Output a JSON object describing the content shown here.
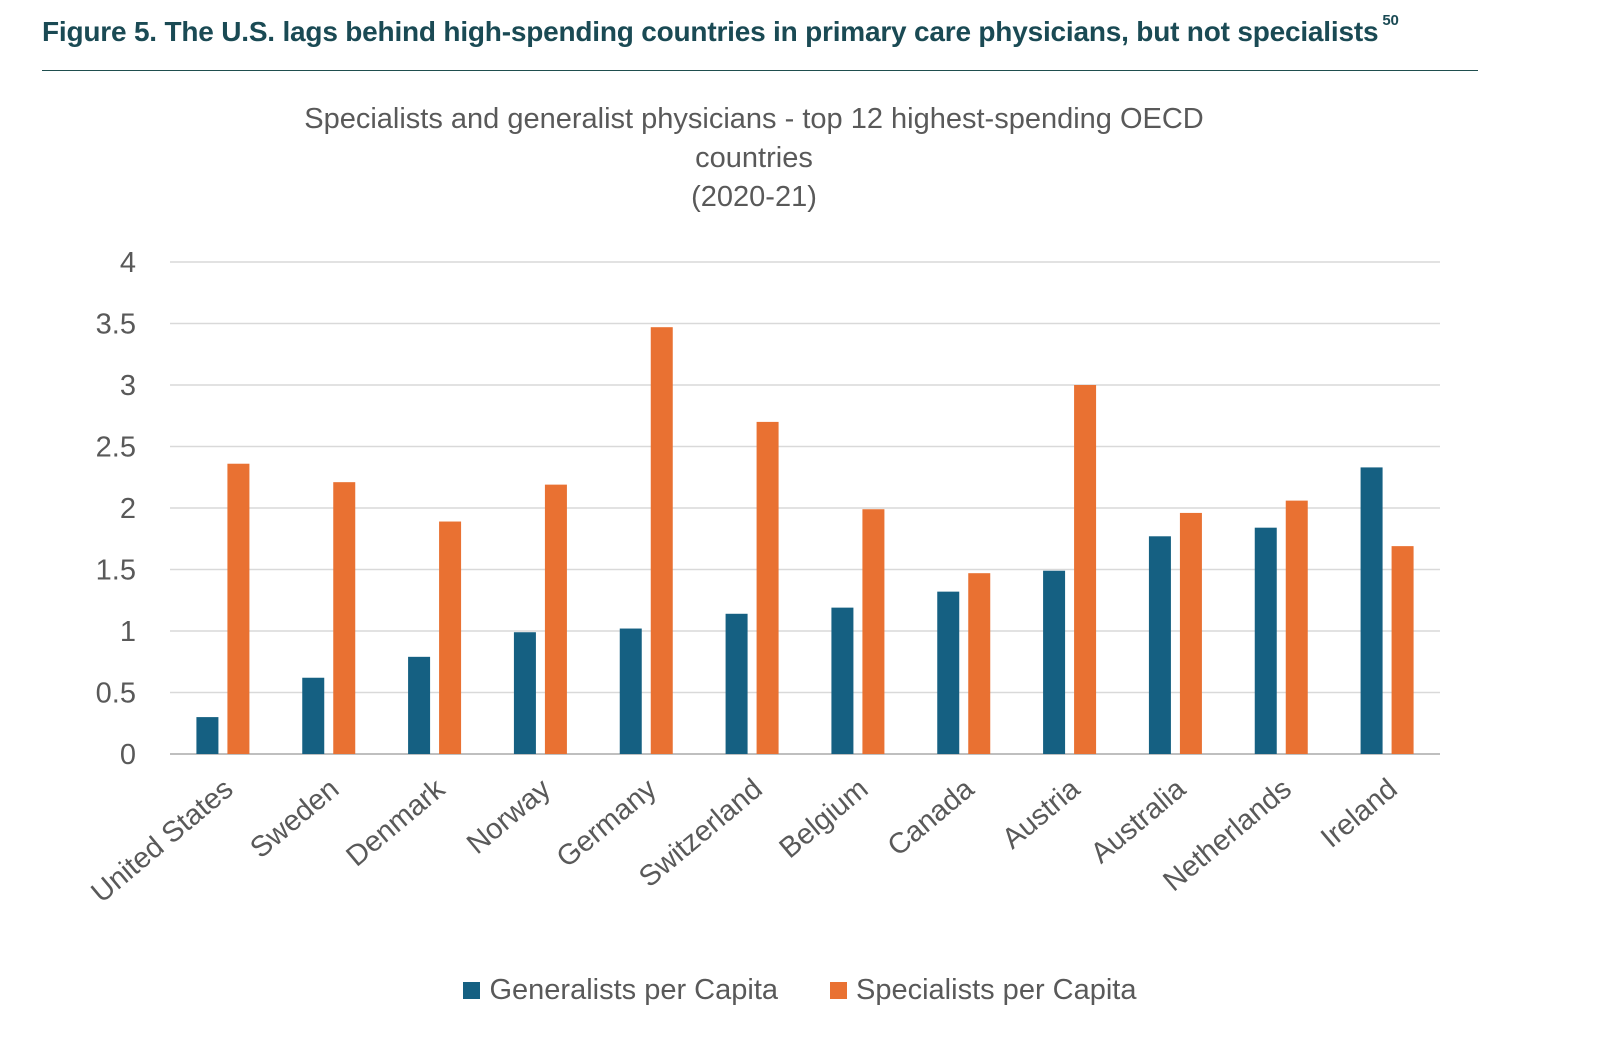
{
  "figure": {
    "caption": "Figure 5. The U.S. lags behind high-spending countries in primary care physicians, but not specialists",
    "footnote": "50"
  },
  "chart_data": {
    "type": "bar",
    "title_lines": [
      "Specialists and generalist physicians - top 12 highest-spending OECD",
      "countries",
      "(2020-21)"
    ],
    "categories": [
      "United States",
      "Sweden",
      "Denmark",
      "Norway",
      "Germany",
      "Switzerland",
      "Belgium",
      "Canada",
      "Austria",
      "Australia",
      "Netherlands",
      "Ireland"
    ],
    "series": [
      {
        "name": "Generalists per Capita",
        "color": "#156082",
        "values": [
          0.3,
          0.62,
          0.79,
          0.99,
          1.02,
          1.14,
          1.19,
          1.32,
          1.49,
          1.77,
          1.84,
          2.33
        ]
      },
      {
        "name": "Specialists per Capita",
        "color": "#e97132",
        "values": [
          2.36,
          2.21,
          1.89,
          2.19,
          3.47,
          2.7,
          1.99,
          1.47,
          3.0,
          1.96,
          2.06,
          1.69
        ]
      }
    ],
    "ylim": [
      0,
      4
    ],
    "yticks": [
      "0",
      "0.5",
      "1",
      "1.5",
      "2",
      "2.5",
      "3",
      "3.5",
      "4"
    ],
    "grid": true,
    "legend_position": "bottom"
  }
}
